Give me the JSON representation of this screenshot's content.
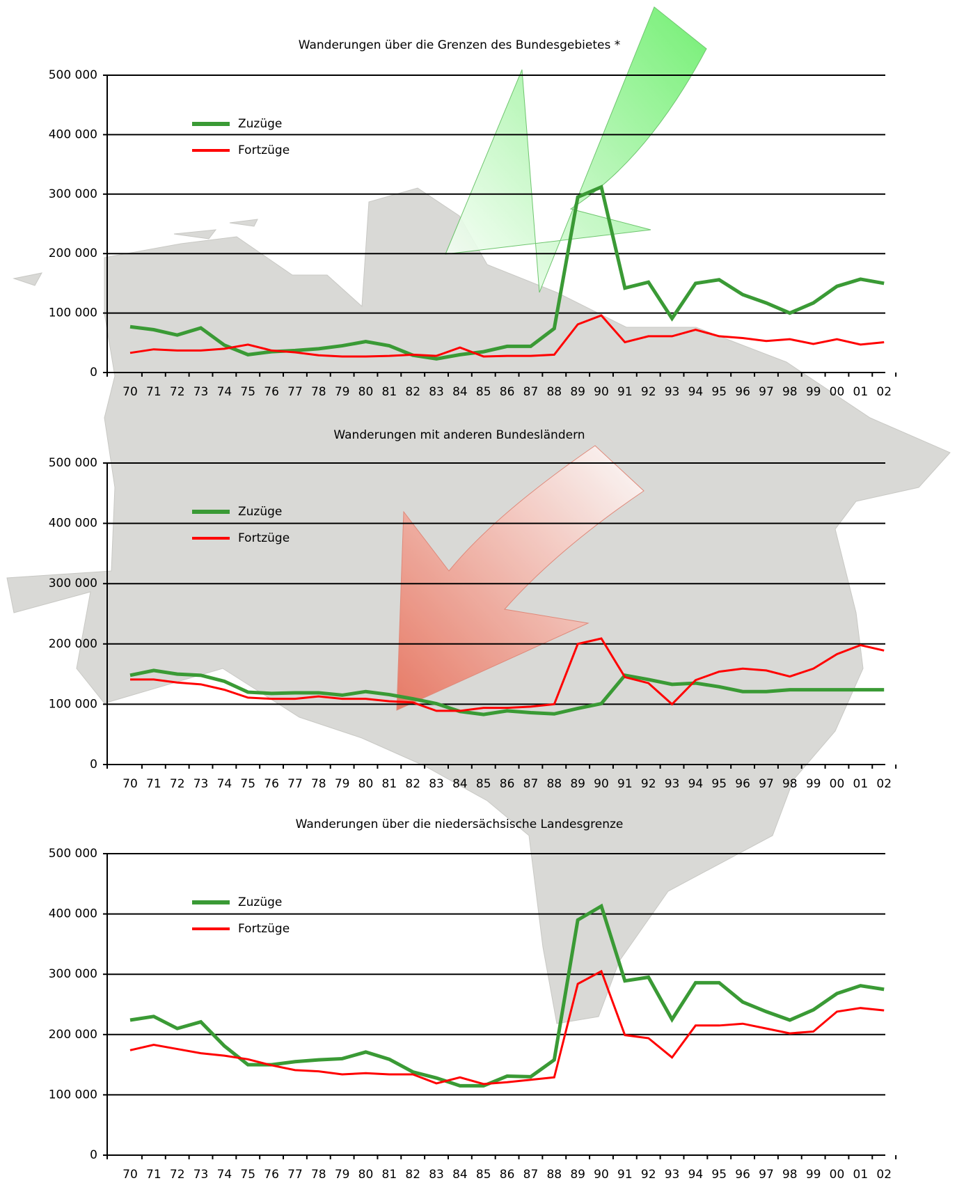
{
  "chart_data": [
    {
      "type": "line",
      "title": "Wanderungen über die Grenzen des Bundesgebietes *",
      "categories": [
        "70",
        "71",
        "72",
        "73",
        "74",
        "75",
        "76",
        "77",
        "78",
        "79",
        "80",
        "81",
        "82",
        "83",
        "84",
        "85",
        "86",
        "87",
        "88",
        "89",
        "90",
        "91",
        "92",
        "93",
        "94",
        "95",
        "96",
        "97",
        "98",
        "99",
        "00",
        "01",
        "02"
      ],
      "series": [
        {
          "name": "Zuzüge",
          "color": "#3a9a35",
          "values": [
            77000,
            72000,
            63000,
            75000,
            46000,
            30000,
            35000,
            37000,
            40000,
            45000,
            52000,
            45000,
            29000,
            23000,
            30000,
            35000,
            44000,
            44000,
            74000,
            295000,
            312000,
            142000,
            152000,
            91000,
            150000,
            156000,
            131000,
            117000,
            100000,
            117000,
            145000,
            157000,
            150000
          ]
        },
        {
          "name": "Fortzüge",
          "color": "#ff0000",
          "values": [
            33000,
            39000,
            37000,
            37000,
            40000,
            47000,
            37000,
            34000,
            29000,
            27000,
            27000,
            28000,
            30000,
            28000,
            42000,
            27000,
            28000,
            28000,
            30000,
            81000,
            96000,
            51000,
            61000,
            61000,
            72000,
            61000,
            58000,
            53000,
            56000,
            48000,
            56000,
            47000,
            51000
          ]
        }
      ],
      "ylim": [
        0,
        500000
      ],
      "yticks": [
        0,
        {
          "value": 100000,
          "label": "100 000"
        },
        {
          "value": 200000,
          "label": "200 000"
        },
        {
          "value": 300000,
          "label": "300 000"
        },
        {
          "value": 400000,
          "label": "400 000"
        },
        {
          "value": 500000,
          "label": "500 000"
        }
      ],
      "grid": true
    },
    {
      "type": "line",
      "title": "Wanderungen mit anderen Bundesländern",
      "categories": [
        "70",
        "71",
        "72",
        "73",
        "74",
        "75",
        "76",
        "77",
        "78",
        "79",
        "80",
        "81",
        "82",
        "83",
        "84",
        "85",
        "86",
        "87",
        "88",
        "89",
        "90",
        "91",
        "92",
        "93",
        "94",
        "95",
        "96",
        "97",
        "98",
        "99",
        "00",
        "01",
        "02"
      ],
      "series": [
        {
          "name": "Zuzüge",
          "color": "#3a9a35",
          "values": [
            148000,
            156000,
            150000,
            148000,
            138000,
            120000,
            118000,
            119000,
            119000,
            115000,
            121000,
            116000,
            109000,
            101000,
            88000,
            83000,
            89000,
            86000,
            84000,
            93000,
            101000,
            148000,
            141000,
            133000,
            135000,
            129000,
            121000,
            121000,
            124000,
            124000,
            124000,
            124000,
            124000
          ]
        },
        {
          "name": "Fortzüge",
          "color": "#ff0000",
          "values": [
            141000,
            141000,
            136000,
            133000,
            124000,
            111000,
            109000,
            109000,
            113000,
            109000,
            109000,
            105000,
            103000,
            89000,
            89000,
            94000,
            94000,
            96000,
            100000,
            200000,
            209000,
            145000,
            135000,
            100000,
            140000,
            154000,
            159000,
            156000,
            146000,
            159000,
            183000,
            198000,
            189000
          ]
        }
      ],
      "ylim": [
        0,
        500000
      ],
      "yticks": [
        0,
        {
          "value": 100000,
          "label": "100 000"
        },
        {
          "value": 200000,
          "label": "200 000"
        },
        {
          "value": 300000,
          "label": "300 000"
        },
        {
          "value": 400000,
          "label": "400 000"
        },
        {
          "value": 500000,
          "label": "500 000"
        }
      ],
      "grid": true
    },
    {
      "type": "line",
      "title": "Wanderungen über die niedersächsische Landesgrenze",
      "categories": [
        "70",
        "71",
        "72",
        "73",
        "74",
        "75",
        "76",
        "77",
        "78",
        "79",
        "80",
        "81",
        "82",
        "83",
        "84",
        "85",
        "86",
        "87",
        "88",
        "89",
        "90",
        "91",
        "92",
        "93",
        "94",
        "95",
        "96",
        "97",
        "98",
        "99",
        "00",
        "01",
        "02"
      ],
      "series": [
        {
          "name": "Zuzüge",
          "color": "#3a9a35",
          "values": [
            224000,
            230000,
            210000,
            221000,
            181000,
            150000,
            150000,
            155000,
            158000,
            160000,
            171000,
            159000,
            138000,
            128000,
            115000,
            115000,
            131000,
            130000,
            158000,
            390000,
            413000,
            289000,
            295000,
            225000,
            286000,
            286000,
            254000,
            238000,
            224000,
            241000,
            268000,
            281000,
            275000
          ]
        },
        {
          "name": "Fortzüge",
          "color": "#ff0000",
          "values": [
            174000,
            183000,
            176000,
            169000,
            165000,
            159000,
            149000,
            141000,
            139000,
            134000,
            136000,
            134000,
            134000,
            119000,
            129000,
            118000,
            121000,
            125000,
            129000,
            284000,
            305000,
            199000,
            194000,
            162000,
            215000,
            215000,
            218000,
            210000,
            202000,
            205000,
            238000,
            244000,
            240000
          ]
        }
      ],
      "ylim": [
        0,
        500000
      ],
      "yticks": [
        0,
        {
          "value": 100000,
          "label": "100 000"
        },
        {
          "value": 200000,
          "label": "200 000"
        },
        {
          "value": 300000,
          "label": "300 000"
        },
        {
          "value": 400000,
          "label": "400 000"
        },
        {
          "value": 500000,
          "label": "500 000"
        }
      ],
      "grid": true
    }
  ]
}
